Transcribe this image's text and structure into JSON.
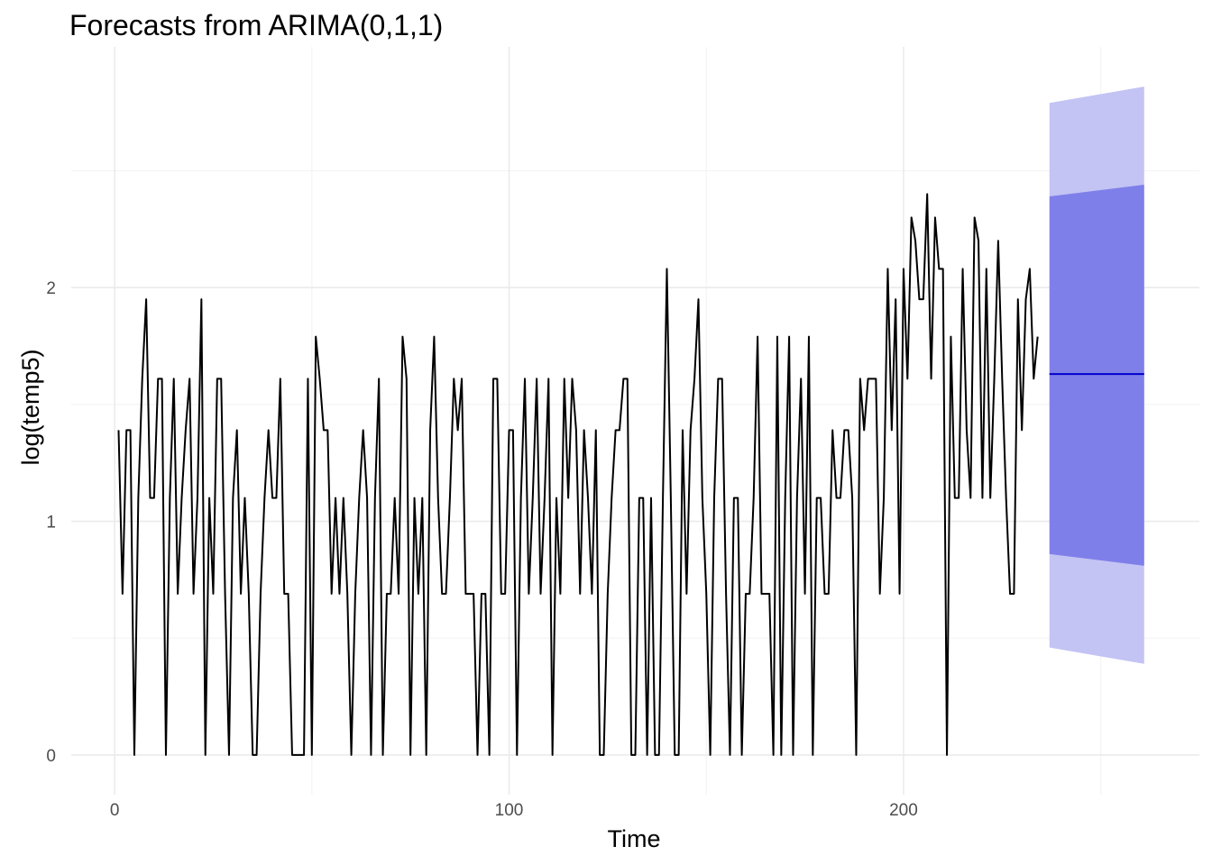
{
  "chart_data": {
    "type": "line",
    "title": "Forecasts from ARIMA(0,1,1)",
    "xlabel": "Time",
    "ylabel": "log(temp5)",
    "xlim": [
      -11,
      275
    ],
    "ylim": [
      -0.17,
      3.03
    ],
    "grid": true,
    "x_ticks": [
      0,
      100,
      200
    ],
    "y_ticks": [
      0,
      1,
      2
    ],
    "x_minor": [
      50,
      150,
      250
    ],
    "y_minor": [
      0.5,
      1.5,
      2.5
    ],
    "colors": {
      "series": "#000000",
      "forecast_mean": "#0000cc",
      "band_80": "#7f7fea",
      "band_95": "#c3c3f4",
      "grid_major": "#ebebeb",
      "grid_minor": "#f4f4f4"
    },
    "series": {
      "x_start": 1,
      "values": [
        1.39,
        0.69,
        1.39,
        1.39,
        0,
        1.1,
        1.61,
        1.95,
        1.1,
        1.1,
        1.61,
        1.61,
        0,
        1.1,
        1.61,
        0.69,
        1.1,
        1.39,
        1.61,
        0.69,
        1.1,
        1.95,
        0,
        1.1,
        0.69,
        1.61,
        1.61,
        0.69,
        0,
        1.1,
        1.39,
        0.69,
        1.1,
        0.69,
        0,
        0,
        0.69,
        1.1,
        1.39,
        1.1,
        1.1,
        1.61,
        0.69,
        0.69,
        0,
        0,
        0,
        0,
        1.61,
        0,
        1.79,
        1.61,
        1.39,
        1.39,
        0.69,
        1.1,
        0.69,
        1.1,
        0.69,
        0,
        0.69,
        1.1,
        1.39,
        1.1,
        0,
        1.1,
        1.61,
        0,
        0.69,
        0.69,
        1.1,
        0.69,
        1.79,
        1.61,
        0,
        1.1,
        0.69,
        1.1,
        0,
        1.39,
        1.79,
        1.1,
        0.69,
        0.69,
        1.1,
        1.61,
        1.39,
        1.61,
        0.69,
        0.69,
        0.69,
        0,
        0.69,
        0.69,
        0,
        1.61,
        1.61,
        0.69,
        0.69,
        1.39,
        1.39,
        0,
        1.1,
        1.61,
        0.69,
        1.1,
        1.61,
        0.69,
        1.1,
        1.61,
        0,
        1.1,
        0.69,
        1.61,
        1.1,
        1.61,
        1.39,
        0.69,
        1.39,
        1.1,
        0.69,
        1.39,
        0,
        0,
        0.69,
        1.1,
        1.39,
        1.39,
        1.61,
        1.61,
        0,
        0,
        1.1,
        1.1,
        0,
        1.1,
        0,
        0,
        1.1,
        2.08,
        1.1,
        0,
        0,
        1.39,
        0.69,
        1.39,
        1.61,
        1.95,
        1.1,
        0.69,
        0,
        1.1,
        1.61,
        1.61,
        0.69,
        0,
        1.1,
        1.1,
        0,
        0.69,
        0.69,
        1.1,
        1.79,
        0.69,
        0.69,
        0.69,
        0,
        1.79,
        0,
        1.1,
        1.79,
        0,
        1.1,
        1.61,
        0.69,
        1.79,
        0,
        1.1,
        1.1,
        0.69,
        0.69,
        1.39,
        1.1,
        1.1,
        1.39,
        1.39,
        1.1,
        0,
        1.61,
        1.39,
        1.61,
        1.61,
        1.61,
        0.69,
        1.1,
        2.08,
        1.39,
        1.95,
        0.69,
        2.08,
        1.61,
        2.3,
        2.2,
        1.95,
        1.95,
        2.4,
        1.61,
        2.3,
        2.08,
        2.08,
        0,
        1.79,
        1.1,
        1.1,
        2.08,
        1.39,
        1.1,
        2.3,
        2.2,
        1.1,
        2.08,
        1.1,
        1.61,
        2.2,
        1.61,
        1.1,
        0.69,
        0.69,
        1.95,
        1.39,
        1.95,
        2.08,
        1.61,
        1.79
      ]
    },
    "forecast": {
      "x": [
        237,
        261
      ],
      "mean": [
        1.63,
        1.63
      ],
      "lo80": [
        0.86,
        0.81
      ],
      "hi80": [
        2.39,
        2.44
      ],
      "lo95": [
        0.46,
        0.39
      ],
      "hi95": [
        2.79,
        2.86
      ]
    }
  }
}
